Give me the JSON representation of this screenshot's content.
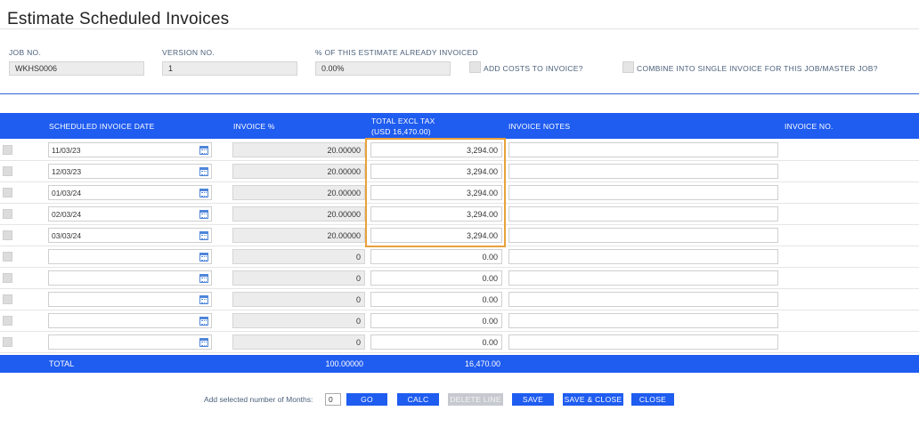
{
  "page_title": "Estimate Scheduled Invoices",
  "header": {
    "job_no_label": "JOB NO.",
    "job_no_value": "WKHS0006",
    "version_label": "VERSION NO.",
    "version_value": "1",
    "invoiced_label": "% OF THIS ESTIMATE ALREADY INVOICED",
    "invoiced_value": "0.00%",
    "add_costs_label": "ADD COSTS TO INVOICE?",
    "combine_label": "COMBINE INTO SINGLE INVOICE FOR THIS JOB/MASTER JOB?"
  },
  "grid": {
    "columns": {
      "date": "SCHEDULED INVOICE DATE",
      "percent": "INVOICE %",
      "total_line1": "TOTAL EXCL TAX",
      "total_line2": "(USD 16,470.00)",
      "notes": "INVOICE NOTES",
      "invoice_no": "INVOICE NO."
    },
    "rows": [
      {
        "date": "11/03/23",
        "percent": "20.00000",
        "amount": "3,294.00",
        "notes": ""
      },
      {
        "date": "12/03/23",
        "percent": "20.00000",
        "amount": "3,294.00",
        "notes": ""
      },
      {
        "date": "01/03/24",
        "percent": "20.00000",
        "amount": "3,294.00",
        "notes": ""
      },
      {
        "date": "02/03/24",
        "percent": "20.00000",
        "amount": "3,294.00",
        "notes": ""
      },
      {
        "date": "03/03/24",
        "percent": "20.00000",
        "amount": "3,294.00",
        "notes": ""
      },
      {
        "date": "",
        "percent": "0",
        "amount": "0.00",
        "notes": ""
      },
      {
        "date": "",
        "percent": "0",
        "amount": "0.00",
        "notes": ""
      },
      {
        "date": "",
        "percent": "0",
        "amount": "0.00",
        "notes": ""
      },
      {
        "date": "",
        "percent": "0",
        "amount": "0.00",
        "notes": ""
      },
      {
        "date": "",
        "percent": "0",
        "amount": "0.00",
        "notes": ""
      }
    ],
    "total": {
      "label": "TOTAL",
      "percent": "100.00000",
      "amount": "16,470.00"
    }
  },
  "footer": {
    "months_label": "Add selected number of Months:",
    "months_value": "0",
    "go": "GO",
    "calc": "CALC",
    "delete_line": "DELETE LINE",
    "save": "SAVE",
    "save_close": "SAVE & CLOSE",
    "close": "CLOSE"
  },
  "colors": {
    "accent": "#1f5cf0",
    "highlight": "#e8a23a"
  },
  "icons": {
    "date_picker": "calendar-icon"
  }
}
